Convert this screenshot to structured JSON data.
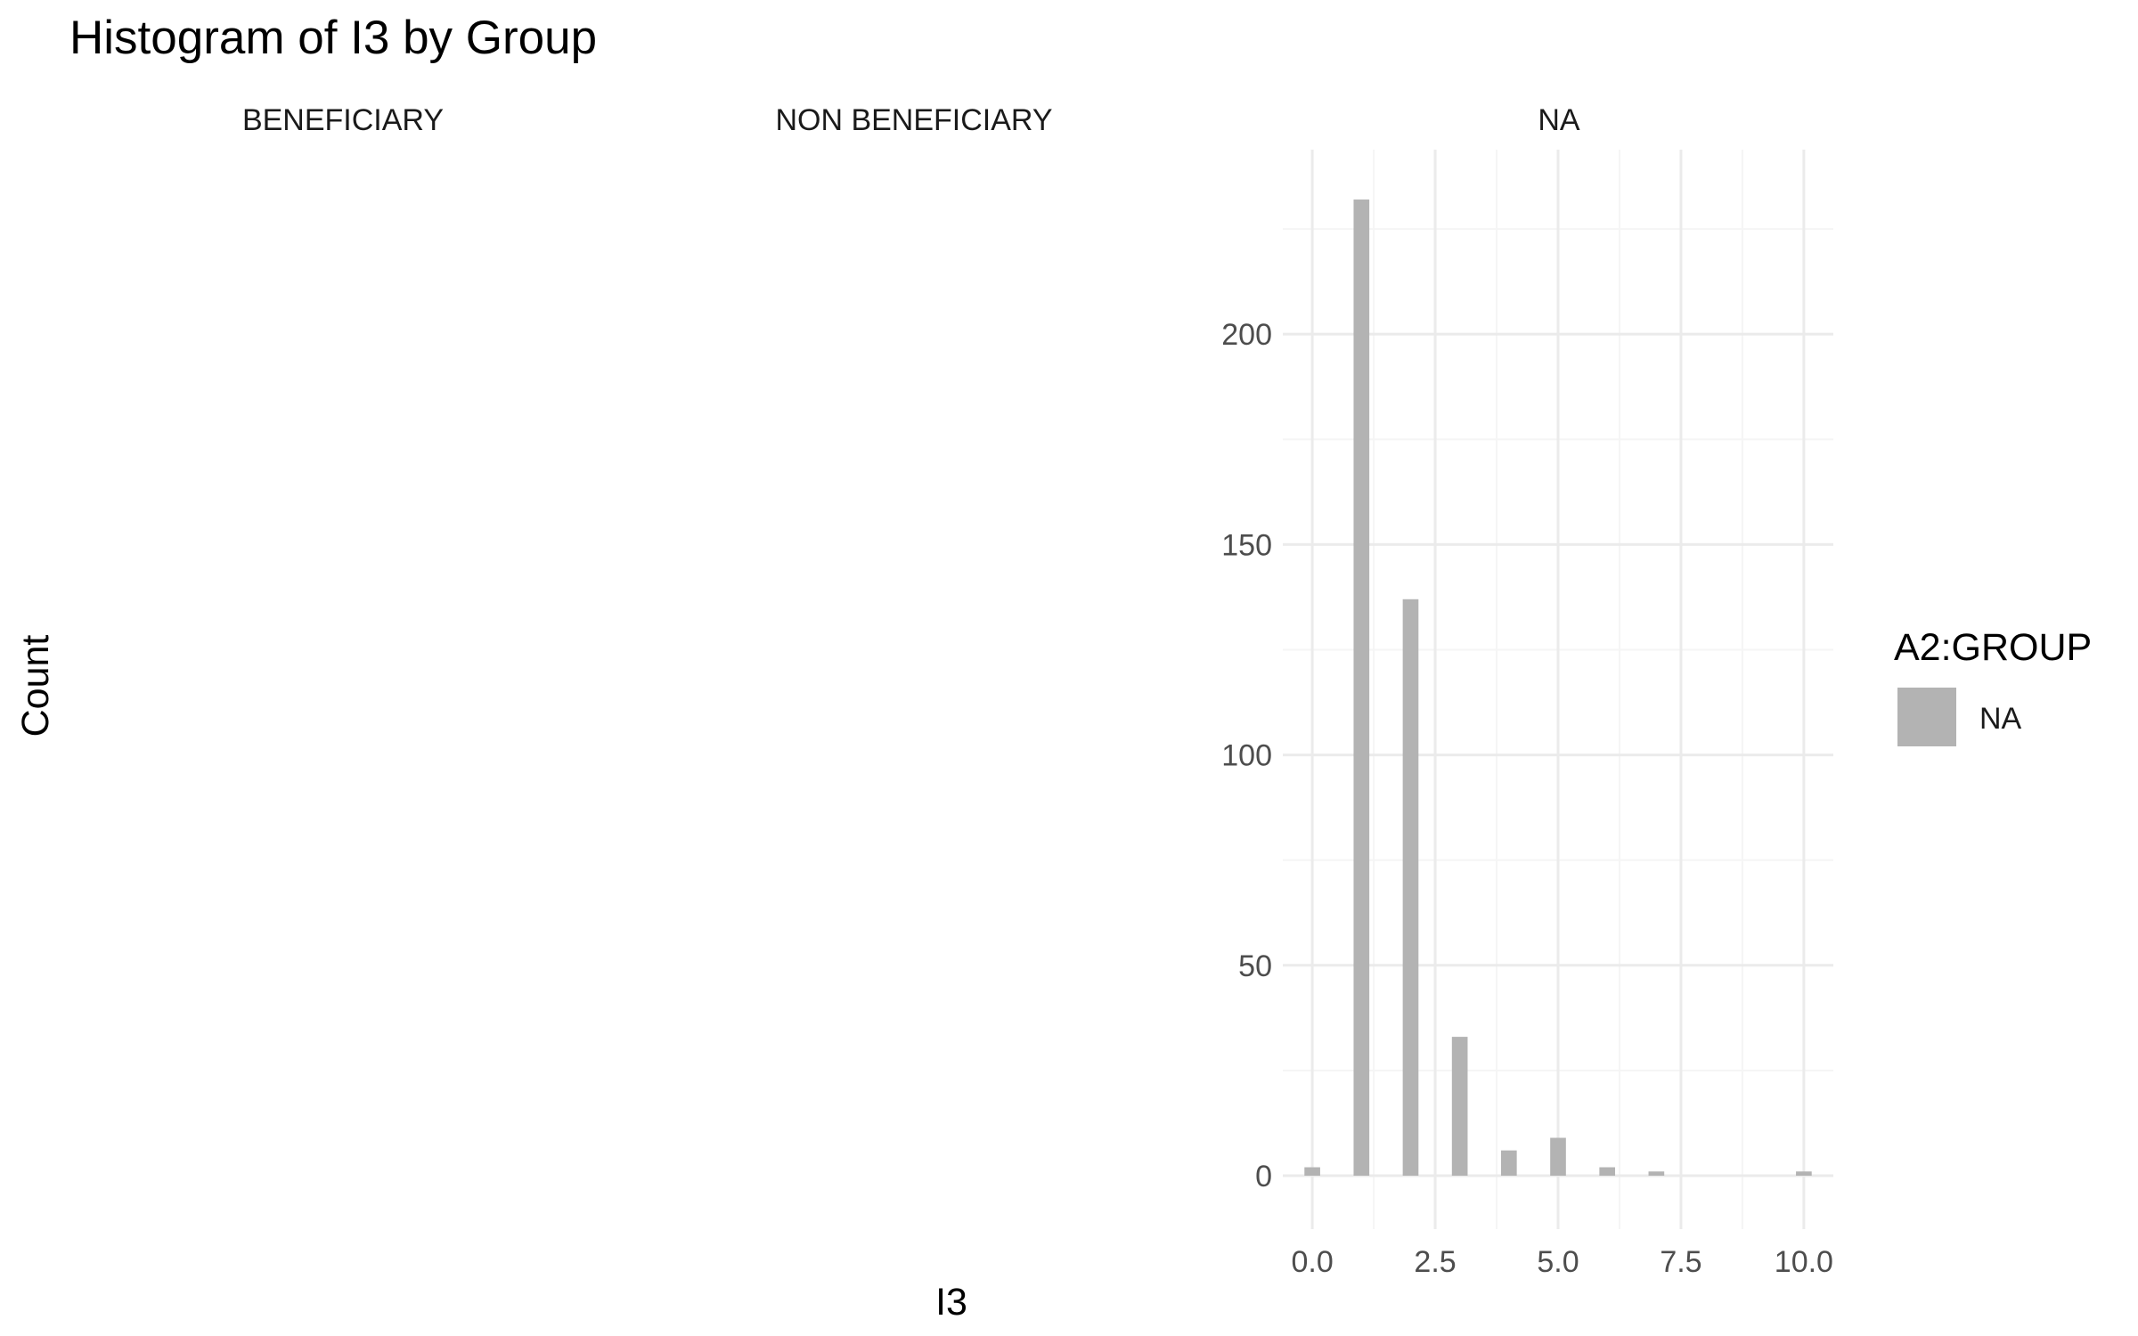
{
  "chart_data": {
    "type": "bar",
    "title": "Histogram of I3 by Group",
    "xlabel": "I3",
    "ylabel": "Count",
    "facets": [
      "BENEFICIARY",
      "NON BENEFICIARY",
      "NA"
    ],
    "xlim": [
      -0.6,
      10.6
    ],
    "ylim": [
      0,
      232
    ],
    "x_ticks": [
      0,
      2.5,
      5,
      7.5,
      10
    ],
    "x_tick_labels": [
      "0.0",
      "2.5",
      "5.0",
      "7.5",
      "10.0"
    ],
    "y_ticks": [
      0,
      50,
      100,
      150,
      200
    ],
    "y_tick_labels": [
      "0",
      "50",
      "100",
      "150",
      "200"
    ],
    "bin_width": 0.32,
    "series": [
      {
        "name": "NA",
        "facet": "NA",
        "x": [
          0,
          1,
          2,
          3,
          4,
          5,
          6,
          7,
          10
        ],
        "values": [
          2,
          232,
          137,
          33,
          6,
          9,
          2,
          1,
          1
        ]
      }
    ],
    "colors": {
      "bar": "#B3B3B3",
      "grid_major": "#EBEBEB",
      "grid_minor": "#F5F5F5"
    },
    "grid": true,
    "legend": {
      "title": "A2:GROUP",
      "position": "right",
      "entries": [
        "NA"
      ]
    }
  }
}
